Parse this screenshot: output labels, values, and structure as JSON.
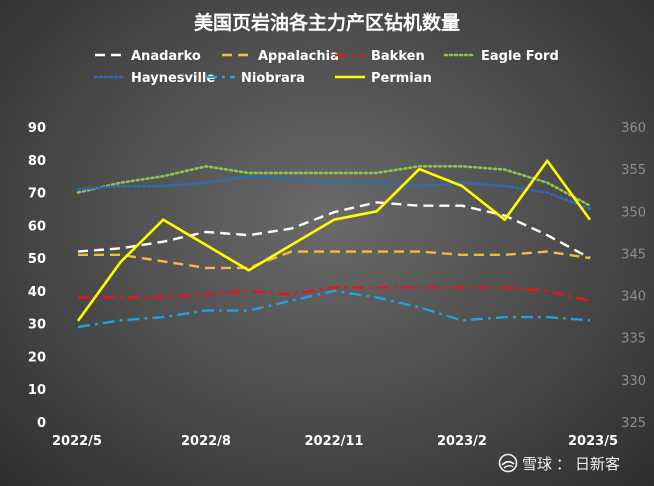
{
  "chart_data": {
    "type": "line",
    "title": "美国页岩油各主力产区钻机数量",
    "x": [
      "2022/5",
      "2022/6",
      "2022/7",
      "2022/8",
      "2022/9",
      "2022/10",
      "2022/11",
      "2022/12",
      "2023/1",
      "2023/2",
      "2023/3",
      "2023/4",
      "2023/5"
    ],
    "x_tick_labels": [
      "2022/5",
      "2022/8",
      "2022/11",
      "2023/2",
      "2023/5"
    ],
    "y_left": {
      "lim": [
        0,
        90
      ],
      "ticks": [
        0,
        10,
        20,
        30,
        40,
        50,
        60,
        70,
        80,
        90
      ]
    },
    "y_right": {
      "lim": [
        325,
        360
      ],
      "ticks": [
        325,
        330,
        335,
        340,
        345,
        350,
        355,
        360
      ]
    },
    "legend_position": "top",
    "grid": false,
    "series": [
      {
        "name": "Anadarko",
        "axis": "left",
        "color": "#ffffff",
        "style": "dash",
        "values": [
          52,
          53,
          55,
          58,
          57,
          59,
          64,
          67,
          66,
          66,
          63,
          57,
          50
        ]
      },
      {
        "name": "Appalachia",
        "axis": "left",
        "color": "#f4b942",
        "style": "dash",
        "values": [
          51,
          51,
          49,
          47,
          47,
          52,
          52,
          52,
          52,
          51,
          51,
          52,
          50
        ]
      },
      {
        "name": "Bakken",
        "axis": "left",
        "color": "#e8141e",
        "style": "dashdot",
        "values": [
          38,
          38,
          38,
          39,
          40,
          39,
          41,
          41,
          41,
          41,
          41,
          40,
          37
        ]
      },
      {
        "name": "Eagle Ford",
        "axis": "left",
        "color": "#8fc44a",
        "style": "dot",
        "values": [
          70,
          73,
          75,
          78,
          76,
          76,
          76,
          76,
          78,
          78,
          77,
          73,
          66
        ]
      },
      {
        "name": "Haynesville",
        "axis": "left",
        "color": "#2e6db5",
        "style": "dot",
        "values": [
          71,
          72,
          72,
          73,
          75,
          74,
          73,
          73,
          72,
          73,
          72,
          70,
          65
        ]
      },
      {
        "name": "Niobrara",
        "axis": "left",
        "color": "#1fa3dc",
        "style": "dashdot",
        "values": [
          29,
          31,
          32,
          34,
          34,
          37,
          40,
          38,
          35,
          31,
          32,
          32,
          31
        ]
      },
      {
        "name": "Permian",
        "axis": "right",
        "color": "#ffff00",
        "style": "solid",
        "values": [
          337,
          344,
          349,
          346,
          343,
          346,
          349,
          350,
          355,
          353,
          349,
          356,
          349
        ]
      }
    ]
  },
  "watermark": {
    "brand": "雪球",
    "separator": "：",
    "author": "日新客"
  }
}
